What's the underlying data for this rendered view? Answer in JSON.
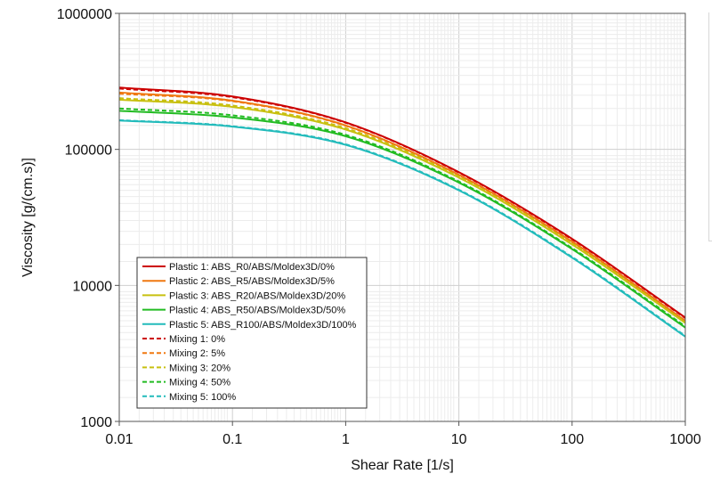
{
  "chart_data": {
    "type": "line",
    "xlabel": "Shear Rate [1/s]",
    "ylabel": "Viscosity [g/(cm.s)]",
    "xscale": "log",
    "yscale": "log",
    "xlim": [
      0.01,
      1000
    ],
    "ylim": [
      1000,
      1000000
    ],
    "x_ticks": [
      0.01,
      0.1,
      1,
      10,
      100,
      1000
    ],
    "x_tick_labels": [
      "0.01",
      "0.1",
      "1",
      "10",
      "100",
      "1000"
    ],
    "y_ticks": [
      1000,
      10000,
      100000,
      1000000
    ],
    "y_tick_labels": [
      "1000",
      "10000",
      "100000",
      "1000000"
    ],
    "grid": true,
    "legend_position": "bottom-left",
    "x": [
      0.01,
      0.1,
      1,
      10,
      100,
      1000
    ],
    "series": [
      {
        "name": "Plastic 1: ABS_R0/ABS/Moldex3D/0%",
        "color": "#cc0000",
        "dash": "solid",
        "values": [
          285000,
          245000,
          158000,
          68000,
          22000,
          5800
        ]
      },
      {
        "name": "Plastic 2: ABS_R5/ABS/Moldex3D/5%",
        "color": "#f07810",
        "dash": "solid",
        "values": [
          262000,
          228000,
          150000,
          65000,
          21000,
          5500
        ]
      },
      {
        "name": "Plastic 3: ABS_R20/ABS/Moldex3D/20%",
        "color": "#c8c010",
        "dash": "solid",
        "values": [
          232000,
          205000,
          140000,
          62000,
          20000,
          5300
        ]
      },
      {
        "name": "Plastic 4: ABS_R50/ABS/Moldex3D/50%",
        "color": "#22bb22",
        "dash": "solid",
        "values": [
          192000,
          172000,
          125000,
          57000,
          18500,
          4900
        ]
      },
      {
        "name": "Plastic 5: ABS_R100/ABS/Moldex3D/100%",
        "color": "#22bbbb",
        "dash": "solid",
        "values": [
          163000,
          147000,
          108000,
          50000,
          16000,
          4200
        ]
      },
      {
        "name": "Mixing 1: 0%",
        "color": "#cc0000",
        "dash": "dashed",
        "values": [
          280000,
          242000,
          157000,
          67500,
          21800,
          5750
        ]
      },
      {
        "name": "Mixing 2: 5%",
        "color": "#f07810",
        "dash": "dashed",
        "values": [
          257000,
          226000,
          149000,
          64500,
          20800,
          5450
        ]
      },
      {
        "name": "Mixing 3: 20%",
        "color": "#c8c010",
        "dash": "dashed",
        "values": [
          238000,
          210000,
          143000,
          63000,
          20300,
          5350
        ]
      },
      {
        "name": "Mixing 4: 50%",
        "color": "#22bb22",
        "dash": "dashed",
        "values": [
          200000,
          178000,
          128000,
          58000,
          18800,
          5000
        ]
      },
      {
        "name": "Mixing 5: 100%",
        "color": "#22bbbb",
        "dash": "dashed",
        "values": [
          164000,
          148000,
          109000,
          50500,
          16200,
          4250
        ]
      }
    ]
  }
}
